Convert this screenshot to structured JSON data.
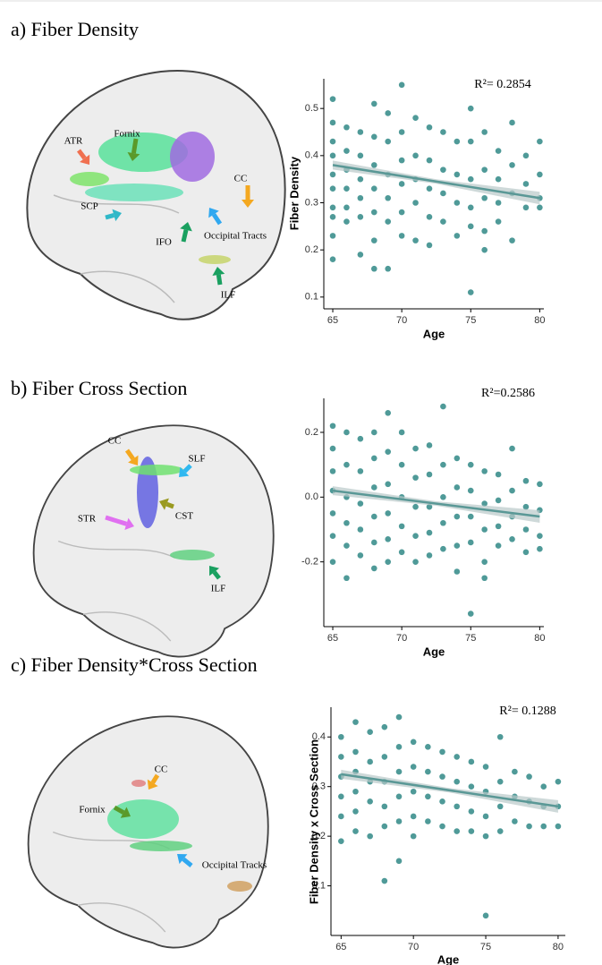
{
  "chart_data": [
    {
      "type": "scatter",
      "title": "a) Fiber Density",
      "annotation": "R²= 0.2854",
      "xlabel": "Age",
      "ylabel": "Fiber Density",
      "brain_labels": [
        "ATR",
        "Fornix",
        "CC",
        "SCP",
        "IFO",
        "Occipital Tracts",
        "ILF"
      ],
      "xlim": [
        64.35,
        80.3
      ],
      "ylim": [
        0.075,
        0.563
      ],
      "xticks": [
        65,
        70,
        75,
        80
      ],
      "yticks": [
        0.1,
        0.2,
        0.3,
        0.4,
        0.5
      ],
      "color": "#4f9a98",
      "x": [
        65,
        65,
        65,
        65,
        65,
        65,
        65,
        65,
        65,
        65,
        66,
        66,
        66,
        66,
        66,
        66,
        67,
        67,
        67,
        67,
        67,
        67,
        68,
        68,
        68,
        68,
        68,
        68,
        68,
        69,
        69,
        69,
        69,
        69,
        69,
        70,
        70,
        70,
        70,
        70,
        70,
        71,
        71,
        71,
        71,
        71,
        72,
        72,
        72,
        72,
        72,
        73,
        73,
        73,
        73,
        74,
        74,
        74,
        74,
        75,
        75,
        75,
        75,
        75,
        75,
        76,
        76,
        76,
        76,
        76,
        77,
        77,
        77,
        77,
        78,
        78,
        78,
        78,
        79,
        79,
        79,
        80,
        80,
        80,
        80
      ],
      "values": [
        0.52,
        0.47,
        0.43,
        0.4,
        0.36,
        0.33,
        0.29,
        0.27,
        0.23,
        0.18,
        0.46,
        0.41,
        0.37,
        0.33,
        0.29,
        0.26,
        0.45,
        0.4,
        0.35,
        0.31,
        0.27,
        0.19,
        0.51,
        0.44,
        0.38,
        0.33,
        0.28,
        0.22,
        0.16,
        0.49,
        0.43,
        0.36,
        0.31,
        0.26,
        0.16,
        0.55,
        0.45,
        0.39,
        0.34,
        0.28,
        0.23,
        0.48,
        0.4,
        0.35,
        0.3,
        0.22,
        0.46,
        0.39,
        0.33,
        0.27,
        0.21,
        0.45,
        0.37,
        0.32,
        0.26,
        0.43,
        0.36,
        0.3,
        0.23,
        0.5,
        0.43,
        0.35,
        0.29,
        0.25,
        0.11,
        0.45,
        0.37,
        0.31,
        0.24,
        0.2,
        0.41,
        0.35,
        0.3,
        0.26,
        0.47,
        0.38,
        0.32,
        0.22,
        0.4,
        0.34,
        0.29,
        0.43,
        0.36,
        0.31,
        0.29
      ],
      "trend": {
        "x": [
          65,
          80
        ],
        "values": [
          0.38,
          0.31
        ]
      }
    },
    {
      "type": "scatter",
      "title": "b) Fiber Cross Section",
      "annotation": "R²=0.2586",
      "xlabel": "Age",
      "brain_labels": [
        "CC",
        "SLF",
        "STR",
        "CST",
        "ILF"
      ],
      "xlim": [
        64.35,
        80.3
      ],
      "ylim": [
        -0.4,
        0.305
      ],
      "xticks": [
        65,
        70,
        75,
        80
      ],
      "yticks": [
        -0.2,
        {
          "value": 0,
          "label": "0.0"
        },
        0.2
      ],
      "color": "#4f9a98",
      "x": [
        65,
        65,
        65,
        65,
        65,
        65,
        65,
        66,
        66,
        66,
        66,
        66,
        66,
        67,
        67,
        67,
        67,
        67,
        68,
        68,
        68,
        68,
        68,
        68,
        69,
        69,
        69,
        69,
        69,
        69,
        70,
        70,
        70,
        70,
        70,
        71,
        71,
        71,
        71,
        71,
        72,
        72,
        72,
        72,
        72,
        73,
        73,
        73,
        73,
        73,
        74,
        74,
        74,
        74,
        74,
        75,
        75,
        75,
        75,
        75,
        76,
        76,
        76,
        76,
        76,
        77,
        77,
        77,
        77,
        78,
        78,
        78,
        78,
        79,
        79,
        79,
        79,
        80,
        80,
        80,
        80
      ],
      "values": [
        0.22,
        0.15,
        0.08,
        0.02,
        -0.05,
        -0.12,
        -0.2,
        0.2,
        0.1,
        0.0,
        -0.08,
        -0.15,
        -0.25,
        0.18,
        0.08,
        -0.02,
        -0.1,
        -0.18,
        0.2,
        0.12,
        0.03,
        -0.06,
        -0.14,
        -0.22,
        0.26,
        0.14,
        0.04,
        -0.05,
        -0.13,
        -0.2,
        0.2,
        0.1,
        0.0,
        -0.09,
        -0.17,
        0.15,
        0.06,
        -0.03,
        -0.12,
        -0.2,
        0.16,
        0.07,
        -0.03,
        -0.11,
        -0.18,
        0.28,
        0.1,
        0.0,
        -0.08,
        -0.16,
        0.12,
        0.03,
        -0.06,
        -0.15,
        -0.23,
        0.1,
        0.02,
        -0.06,
        -0.14,
        -0.36,
        0.08,
        -0.02,
        -0.1,
        -0.2,
        -0.25,
        0.07,
        -0.01,
        -0.09,
        -0.15,
        0.15,
        0.02,
        -0.06,
        -0.13,
        0.05,
        -0.03,
        -0.1,
        -0.17,
        0.04,
        -0.04,
        -0.12,
        -0.16
      ],
      "trend": {
        "x": [
          65,
          80
        ],
        "values": [
          0.02,
          -0.06
        ]
      }
    },
    {
      "type": "scatter",
      "title": "c) Fiber Density*Cross Section",
      "annotation": "R²= 0.1288",
      "xlabel": "Age",
      "ylabel": "Fiber Density x Cross Section",
      "brain_labels": [
        "CC",
        "Fornix",
        "Occipital Tracks"
      ],
      "xlim": [
        64.3,
        80.5
      ],
      "ylim": [
        0.0,
        0.46
      ],
      "xticks": [
        65,
        70,
        75,
        80
      ],
      "yticks": [
        0.1,
        0.2,
        0.3,
        0.4
      ],
      "color": "#4f9a98",
      "x": [
        65,
        65,
        65,
        65,
        65,
        65,
        66,
        66,
        66,
        66,
        66,
        66,
        67,
        67,
        67,
        67,
        67,
        68,
        68,
        68,
        68,
        68,
        68,
        69,
        69,
        69,
        69,
        69,
        69,
        70,
        70,
        70,
        70,
        70,
        71,
        71,
        71,
        71,
        72,
        72,
        72,
        72,
        73,
        73,
        73,
        73,
        74,
        74,
        74,
        74,
        75,
        75,
        75,
        75,
        75,
        76,
        76,
        76,
        76,
        77,
        77,
        77,
        78,
        78,
        78,
        79,
        79,
        79,
        80,
        80,
        80
      ],
      "values": [
        0.4,
        0.36,
        0.32,
        0.28,
        0.24,
        0.19,
        0.43,
        0.37,
        0.33,
        0.29,
        0.25,
        0.21,
        0.41,
        0.35,
        0.31,
        0.27,
        0.2,
        0.42,
        0.36,
        0.31,
        0.26,
        0.22,
        0.11,
        0.44,
        0.38,
        0.33,
        0.28,
        0.23,
        0.15,
        0.39,
        0.34,
        0.29,
        0.24,
        0.2,
        0.38,
        0.33,
        0.28,
        0.23,
        0.37,
        0.32,
        0.27,
        0.22,
        0.36,
        0.31,
        0.26,
        0.21,
        0.35,
        0.3,
        0.25,
        0.21,
        0.34,
        0.29,
        0.24,
        0.2,
        0.04,
        0.4,
        0.31,
        0.26,
        0.21,
        0.33,
        0.28,
        0.23,
        0.32,
        0.27,
        0.22,
        0.3,
        0.26,
        0.22,
        0.31,
        0.26,
        0.22
      ],
      "trend": {
        "x": [
          65,
          80
        ],
        "values": [
          0.325,
          0.26
        ]
      }
    }
  ]
}
